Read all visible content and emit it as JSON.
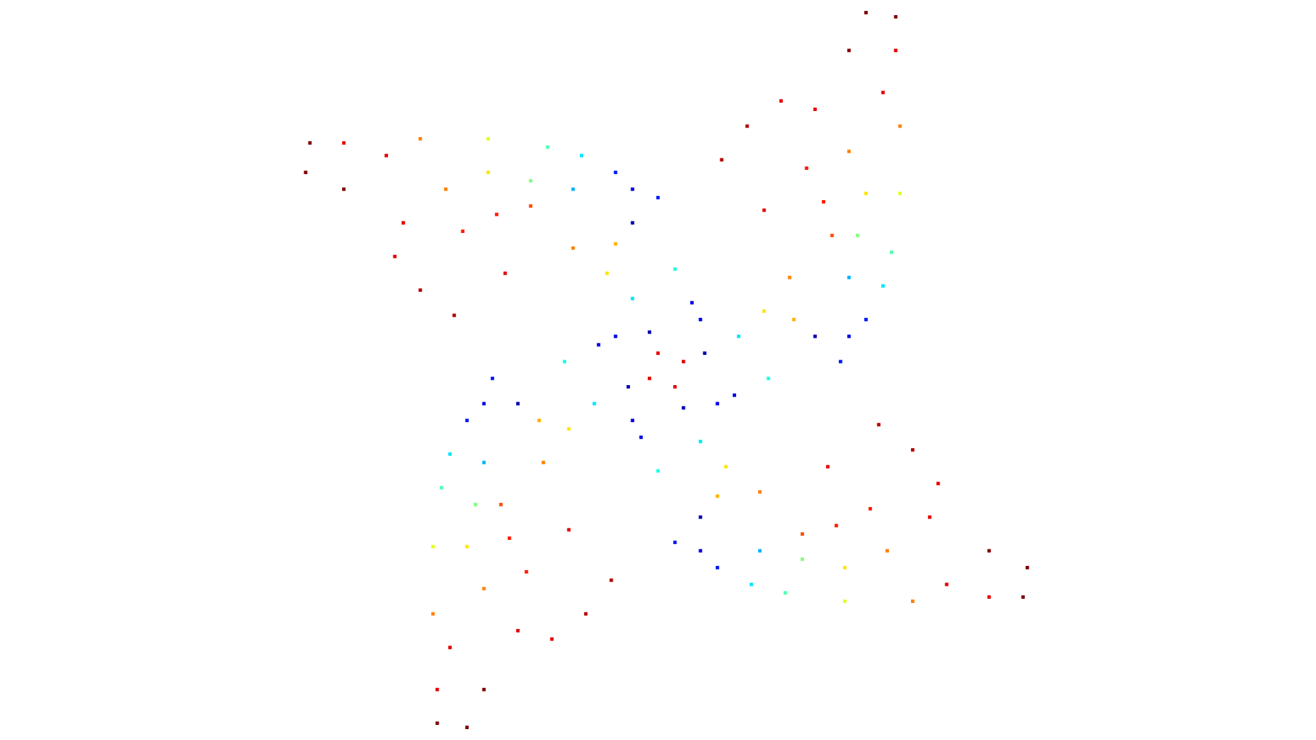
{
  "chart_data": {
    "type": "scatter",
    "colormap": "jet",
    "clim": [
      0,
      1
    ],
    "marker": "square",
    "xlim": [
      0,
      1550
    ],
    "ylim": [
      880,
      0
    ],
    "x": [
      990,
      1040,
      1050,
      1060,
      1060,
      1055,
      1055,
      850,
      880,
      920,
      960,
      1000,
      1020,
      900,
      950,
      980,
      930,
      900,
      870,
      830,
      960,
      1000,
      1020,
      1000,
      1010,
      1020,
      1000,
      1040,
      815,
      795,
      845,
      905,
      935,
      970,
      795,
      885,
      925,
      995,
      1075,
      1165,
      1205,
      1035,
      1075,
      1105,
      1095,
      1165,
      1210,
      975,
      1025,
      945,
      895,
      855,
      825,
      805,
      825,
      825,
      845,
      895,
      945,
      995,
      1045,
      1115,
      865,
      765,
      745,
      775,
      845,
      985,
      580,
      530,
      520,
      510,
      510,
      515,
      515,
      720,
      690,
      650,
      610,
      570,
      550,
      670,
      620,
      590,
      640,
      670,
      700,
      740,
      610,
      570,
      550,
      570,
      560,
      550,
      570,
      530,
      755,
      775,
      725,
      665,
      635,
      600,
      775,
      685,
      645,
      575,
      495,
      405,
      365,
      535,
      495,
      465,
      475,
      405,
      360,
      595,
      545,
      625,
      675,
      715,
      745,
      765,
      745,
      745,
      725,
      675,
      625,
      575,
      525,
      455,
      705,
      805,
      825,
      795,
      725,
      585
    ],
    "y": [
      430,
      340,
      300,
      230,
      150,
      60,
      20,
      190,
      150,
      120,
      130,
      60,
      15,
      250,
      200,
      280,
      330,
      370,
      400,
      420,
      400,
      400,
      380,
      330,
      280,
      230,
      180,
      110,
      360,
      460,
      480,
      450,
      380,
      240,
      645,
      695,
      705,
      715,
      715,
      710,
      710,
      505,
      535,
      575,
      615,
      655,
      675,
      555,
      605,
      635,
      585,
      555,
      525,
      485,
      615,
      655,
      675,
      655,
      665,
      675,
      655,
      695,
      470,
      450,
      500,
      560,
      590,
      625,
      450,
      540,
      580,
      650,
      730,
      820,
      860,
      690,
      730,
      760,
      750,
      820,
      865,
      630,
      680,
      600,
      550,
      510,
      480,
      460,
      480,
      480,
      500,
      550,
      600,
      650,
      700,
      770,
      520,
      420,
      400,
      430,
      500,
      640,
      235,
      185,
      175,
      165,
      165,
      170,
      170,
      375,
      345,
      305,
      265,
      225,
      205,
      325,
      275,
      245,
      295,
      325,
      355,
      395,
      265,
      225,
      205,
      225,
      215,
      205,
      225,
      185,
      410,
      430,
      380,
      320,
      290,
      255
    ],
    "color_values": [
      0.15,
      0.35,
      0.45,
      0.6,
      0.75,
      0.9,
      1,
      0.95,
      0.95,
      0.9,
      0.9,
      1,
      1,
      0.9,
      0.85,
      0.8,
      0.75,
      0.65,
      0.35,
      0.05,
      0.05,
      0.1,
      0.15,
      0.3,
      0.5,
      0.65,
      0.75,
      0.9,
      0.1,
      0.9,
      0.1,
      0.4,
      0.7,
      0.85,
      0.15,
      0.35,
      0.45,
      0.6,
      0.75,
      0.9,
      1,
      0.95,
      0.95,
      0.9,
      0.9,
      1,
      1,
      0.9,
      0.85,
      0.8,
      0.75,
      0.65,
      0.35,
      0.05,
      0.05,
      0.1,
      0.15,
      0.3,
      0.5,
      0.65,
      0.75,
      0.9,
      0.1,
      0.9,
      0.1,
      0.4,
      0.7,
      0.85,
      0.15,
      0.35,
      0.45,
      0.6,
      0.75,
      0.9,
      1,
      0.95,
      0.95,
      0.9,
      0.9,
      1,
      1,
      0.9,
      0.85,
      0.8,
      0.75,
      0.65,
      0.35,
      0.05,
      0.05,
      0.1,
      0.15,
      0.3,
      0.5,
      0.65,
      0.75,
      0.9,
      0.1,
      0.9,
      0.1,
      0.4,
      0.7,
      0.85,
      0.15,
      0.35,
      0.45,
      0.6,
      0.75,
      0.9,
      1,
      0.95,
      0.95,
      0.9,
      0.9,
      1,
      1,
      0.9,
      0.85,
      0.8,
      0.75,
      0.65,
      0.35,
      0.05,
      0.05,
      0.1,
      0.15,
      0.3,
      0.5,
      0.65,
      0.75,
      0.9,
      0.1,
      0.9,
      0.1,
      0.4,
      0.7,
      0.85
    ]
  }
}
